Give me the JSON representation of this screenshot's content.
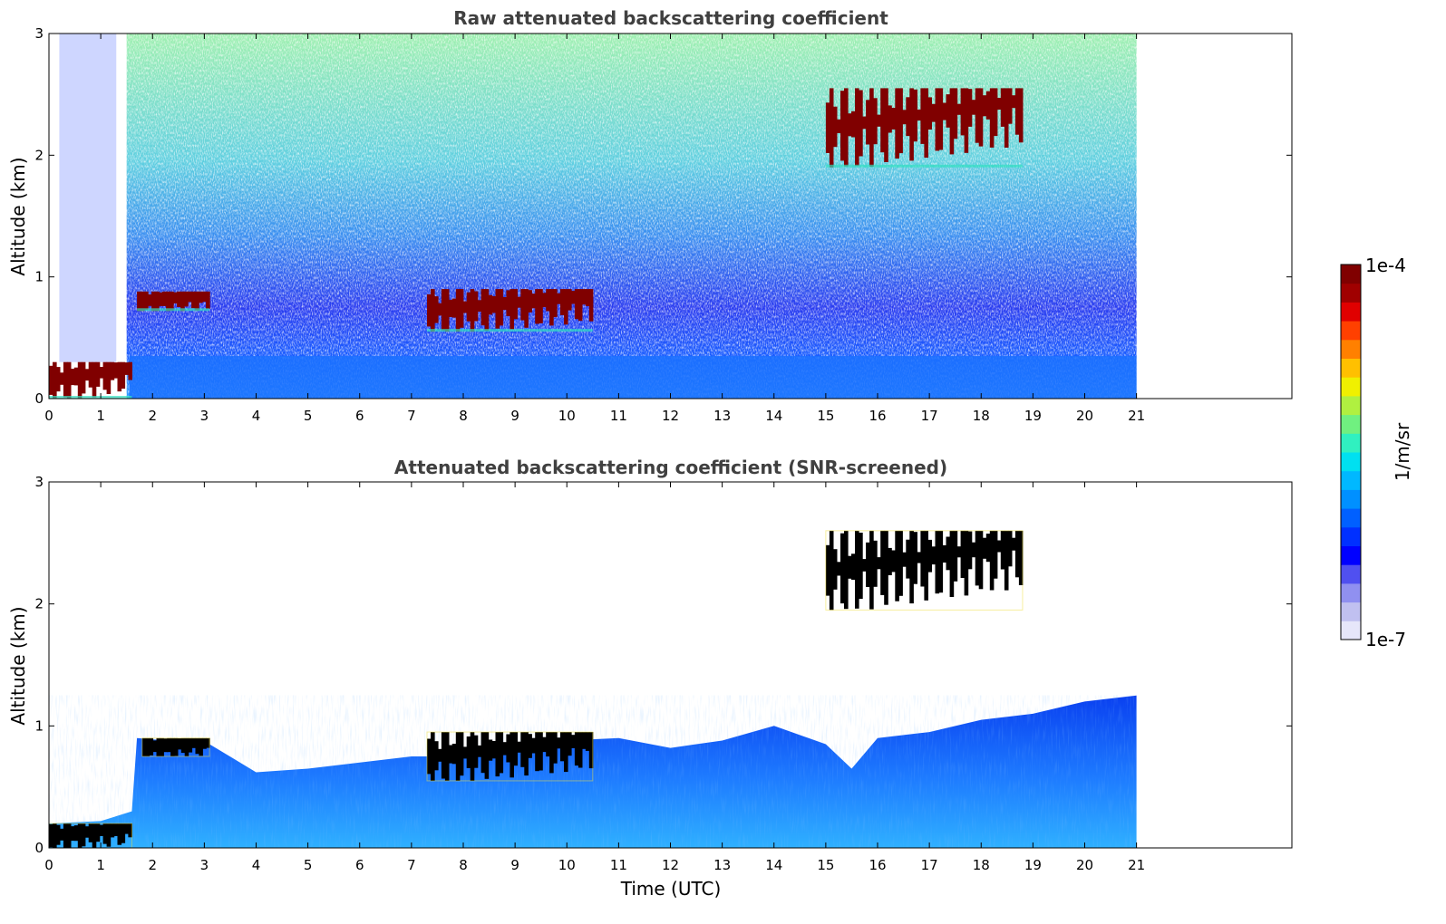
{
  "chart_data": [
    {
      "type": "heatmap",
      "title": "Raw attenuated backscattering coefficient",
      "xlabel": "",
      "ylabel": "Altitude (km)",
      "xlim": [
        0,
        24
      ],
      "ylim": [
        0,
        3
      ],
      "x_ticks": [
        "0",
        "1",
        "2",
        "3",
        "4",
        "5",
        "6",
        "7",
        "8",
        "9",
        "10",
        "11",
        "12",
        "13",
        "14",
        "15",
        "16",
        "17",
        "18",
        "19",
        "20",
        "21"
      ],
      "y_ticks": [
        "0",
        "1",
        "2",
        "3"
      ],
      "data_extent_hours": [
        0,
        21
      ],
      "layers": [
        {
          "feature": "surface layer",
          "x": [
            0,
            1.6
          ],
          "y": [
            0.0,
            0.3
          ],
          "level": "high"
        },
        {
          "feature": "cloud",
          "x": [
            1.7,
            3.1
          ],
          "y": [
            0.72,
            0.88
          ],
          "level": "high"
        },
        {
          "feature": "cloud",
          "x": [
            7.3,
            10.5
          ],
          "y": [
            0.55,
            0.9
          ],
          "level": "high"
        },
        {
          "feature": "cloud",
          "x": [
            15.0,
            18.8
          ],
          "y": [
            1.9,
            2.55
          ],
          "level": "high"
        }
      ],
      "background": "noisy, low-medium values, boundary layer below ~1 km"
    },
    {
      "type": "heatmap",
      "title": "Attenuated backscattering coefficient (SNR-screened)",
      "xlabel": "Time (UTC)",
      "ylabel": "Altitude (km)",
      "xlim": [
        0,
        24
      ],
      "ylim": [
        0,
        3
      ],
      "x_ticks": [
        "0",
        "1",
        "2",
        "3",
        "4",
        "5",
        "6",
        "7",
        "8",
        "9",
        "10",
        "11",
        "12",
        "13",
        "14",
        "15",
        "16",
        "17",
        "18",
        "19",
        "20",
        "21"
      ],
      "y_ticks": [
        "0",
        "1",
        "2",
        "3"
      ],
      "data_extent_hours": [
        0,
        21
      ],
      "boundary_layer_top_km": [
        [
          0,
          0.2
        ],
        [
          1,
          0.22
        ],
        [
          1.6,
          0.3
        ],
        [
          1.7,
          0.9
        ],
        [
          3.1,
          0.85
        ],
        [
          4,
          0.62
        ],
        [
          5,
          0.65
        ],
        [
          6,
          0.7
        ],
        [
          7,
          0.75
        ],
        [
          8,
          0.75
        ],
        [
          9,
          0.8
        ],
        [
          10,
          0.88
        ],
        [
          11,
          0.9
        ],
        [
          12,
          0.82
        ],
        [
          13,
          0.88
        ],
        [
          14,
          1.0
        ],
        [
          15,
          0.85
        ],
        [
          15.5,
          0.65
        ],
        [
          16,
          0.9
        ],
        [
          17,
          0.95
        ],
        [
          18,
          1.05
        ],
        [
          19,
          1.1
        ],
        [
          20,
          1.2
        ],
        [
          21,
          1.25
        ]
      ],
      "layers": [
        {
          "feature": "surface layer",
          "x": [
            0,
            1.6
          ],
          "y": [
            0.0,
            0.2
          ],
          "level": "saturated"
        },
        {
          "feature": "cloud",
          "x": [
            1.8,
            3.1
          ],
          "y": [
            0.75,
            0.9
          ],
          "level": "saturated"
        },
        {
          "feature": "cloud",
          "x": [
            7.3,
            10.5
          ],
          "y": [
            0.55,
            0.95
          ],
          "level": "saturated"
        },
        {
          "feature": "cloud",
          "x": [
            15.0,
            18.8
          ],
          "y": [
            1.95,
            2.6
          ],
          "level": "saturated"
        }
      ]
    }
  ],
  "colorbar": {
    "label": "1/m/sr",
    "max_label": "1e-4",
    "min_label": "1e-7",
    "colors": [
      "#e6e6fa",
      "#c0c0f0",
      "#9090f0",
      "#5050f0",
      "#0000ff",
      "#0030ff",
      "#0060ff",
      "#0090ff",
      "#00b8ff",
      "#00e0f0",
      "#30f0c0",
      "#70f080",
      "#b0f040",
      "#f0f000",
      "#ffc000",
      "#ff8000",
      "#ff4000",
      "#e00000",
      "#a00000",
      "#800000"
    ]
  }
}
